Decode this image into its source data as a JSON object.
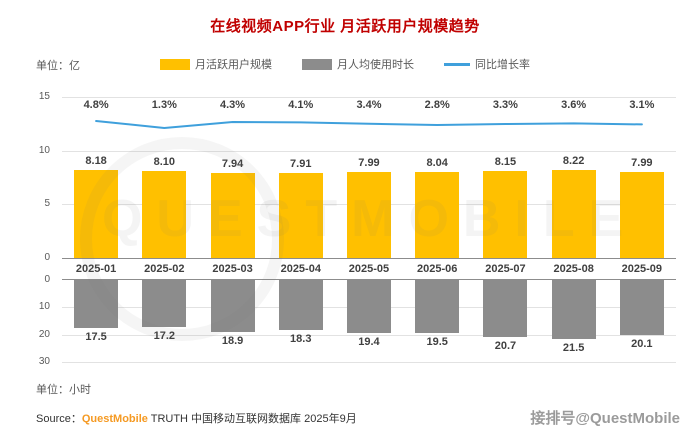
{
  "header": {
    "title": "在线视频APP行业 月活跃用户规模趋势"
  },
  "units": {
    "top": "单位：亿",
    "bottom": "单位：小时"
  },
  "legend": {
    "items": [
      {
        "label": "月活跃用户规模",
        "color": "#FFC000",
        "swatch": "square"
      },
      {
        "label": "月人均使用时长",
        "color": "#8C8C8C",
        "swatch": "square"
      },
      {
        "label": "同比增长率",
        "color": "#3FA0DC",
        "swatch": "line"
      }
    ]
  },
  "source": {
    "label": "Source：",
    "brand": "QuestMobile",
    "suffix": " TRUTH 中国移动互联网数据库 2025年9月"
  },
  "watermark": {
    "corner": "接排号@QuestMobile",
    "ghost": "QUESTMOBILE"
  },
  "chart_data": {
    "type": "bar",
    "title": "在线视频APP行业 月活跃用户规模趋势",
    "categories": [
      "2025-01",
      "2025-02",
      "2025-03",
      "2025-04",
      "2025-05",
      "2025-06",
      "2025-07",
      "2025-08",
      "2025-09"
    ],
    "series": [
      {
        "name": "月活跃用户规模",
        "type": "bar",
        "unit": "亿",
        "color": "#FFC000",
        "values": [
          "8.18",
          "8.10",
          "7.94",
          "7.91",
          "7.99",
          "8.04",
          "8.15",
          "8.22",
          "7.99"
        ],
        "axis": {
          "min": 0,
          "max": 15,
          "ticks": [
            0,
            5,
            10,
            15
          ]
        }
      },
      {
        "name": "月人均使用时长",
        "type": "bar",
        "unit": "小时",
        "color": "#8C8C8C",
        "inverted": true,
        "values": [
          "17.5",
          "17.2",
          "18.9",
          "18.3",
          "19.4",
          "19.5",
          "20.7",
          "21.5",
          "20.1"
        ],
        "axis": {
          "min": 0,
          "max": 30,
          "ticks": [
            0,
            10,
            20,
            30
          ]
        }
      },
      {
        "name": "同比增长率",
        "type": "line",
        "color": "#3FA0DC",
        "values": [
          "4.8%",
          "1.3%",
          "4.3%",
          "4.1%",
          "3.4%",
          "2.8%",
          "3.3%",
          "3.6%",
          "3.1%"
        ]
      }
    ],
    "legend_position": "top",
    "grid": true
  }
}
